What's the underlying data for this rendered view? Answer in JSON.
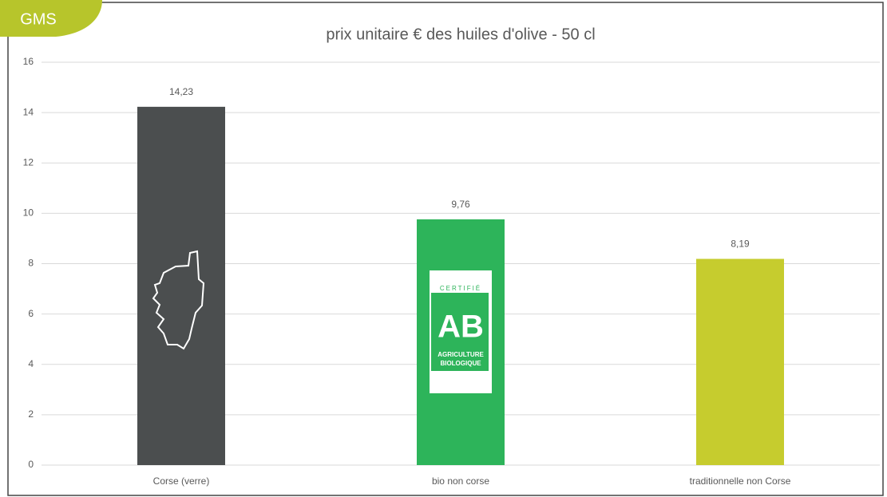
{
  "badge": "GMS",
  "logo": {
    "top": "CERTIFIÉ",
    "mark": "AB",
    "line1": "AGRICULTURE",
    "line2": "BIOLOGIQUE"
  },
  "chart_data": {
    "type": "bar",
    "title": "prix unitaire € des huiles d'olive - 50 cl",
    "categories": [
      "Corse (verre)",
      "bio non corse",
      "traditionnelle non Corse"
    ],
    "values": [
      14.23,
      9.76,
      8.19
    ],
    "value_labels": [
      "14,23",
      "9,76",
      "8,19"
    ],
    "colors": [
      "#4b4e4f",
      "#2db45a",
      "#c6cc2e"
    ],
    "ylim": [
      0,
      16
    ],
    "yticks": [
      0,
      2,
      4,
      6,
      8,
      10,
      12,
      14,
      16
    ],
    "grid": true
  }
}
